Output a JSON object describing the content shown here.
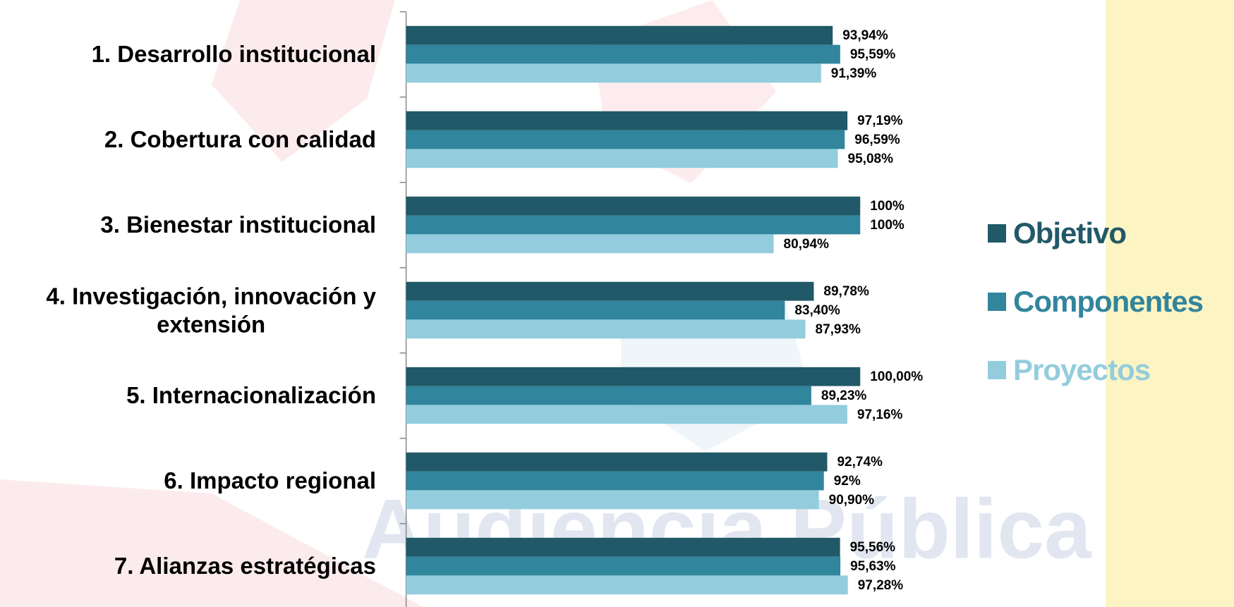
{
  "chart_data": {
    "type": "bar",
    "orientation": "horizontal",
    "watermark": "Audiencia Pública",
    "categories": [
      "1. Desarrollo institucional",
      "2. Cobertura con calidad",
      "3. Bienestar institucional",
      "4. Investigación, innovación y\nextensión",
      "5. Internacionalización",
      "6. Impacto regional",
      "7. Alianzas estratégicas"
    ],
    "xlim": [
      0,
      100
    ],
    "legend": "right",
    "series": [
      {
        "name": "Objetivo",
        "color": "#215968",
        "values": [
          93.94,
          97.19,
          100,
          89.78,
          100.0,
          92.74,
          95.56
        ],
        "value_labels": [
          "93,94%",
          "97,19%",
          "100%",
          "89,78%",
          "100,00%",
          "92,74%",
          "95,56%"
        ]
      },
      {
        "name": "Componentes",
        "color": "#31859c",
        "values": [
          95.59,
          96.59,
          100,
          83.4,
          89.23,
          92,
          95.63
        ],
        "value_labels": [
          "95,59%",
          "96,59%",
          "100%",
          "83,40%",
          "89,23%",
          "92%",
          "95,63%"
        ]
      },
      {
        "name": "Proyectos",
        "color": "#93cddd",
        "values": [
          91.39,
          95.08,
          80.94,
          87.93,
          97.16,
          90.9,
          97.28
        ],
        "value_labels": [
          "91,39%",
          "95,08%",
          "80,94%",
          "87,93%",
          "97,16%",
          "90,90%",
          "97,28%"
        ]
      }
    ]
  }
}
